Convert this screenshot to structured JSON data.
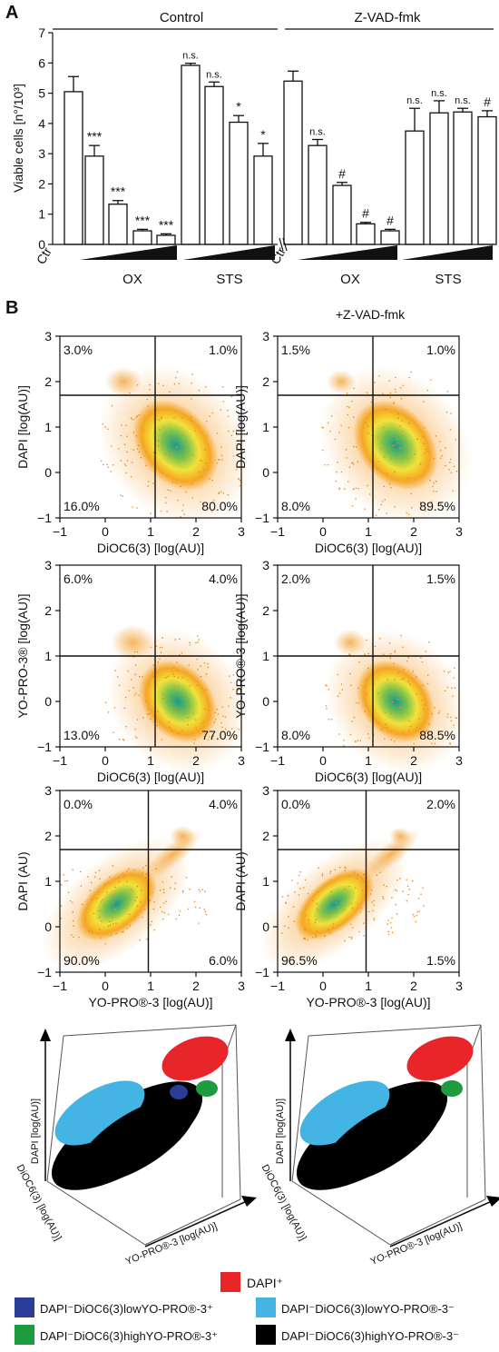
{
  "panel_a": {
    "label": "A",
    "group_control": "Control",
    "group_zvad": "Z-VAD-fmk",
    "ylabel": "Viable cells [n°/10³]",
    "ctr_label": "Ctr",
    "ox_label": "OX",
    "sts_label": "STS"
  },
  "panel_b": {
    "label": "B",
    "zvad_label": "+Z-VAD-fmk",
    "plots": [
      {
        "ylabel": "DAPI [log(AU)]",
        "xlabel": "DiOC6(3) [log(AU)]",
        "q": [
          "3.0%",
          "1.0%",
          "16.0%",
          "80.0%"
        ]
      },
      {
        "ylabel": "DAPI [log(AU)]",
        "xlabel": "DiOC6(3) [log(AU)]",
        "q": [
          "1.5%",
          "1.0%",
          "8.0%",
          "89.5%"
        ]
      },
      {
        "ylabel": "YO-PRO-3® [log(AU)]",
        "xlabel": "DiOC6(3) [log(AU)]",
        "q": [
          "6.0%",
          "4.0%",
          "13.0%",
          "77.0%"
        ]
      },
      {
        "ylabel": "YO-PRO®-3 [log(AU)]",
        "xlabel": "DiOC6(3) [log(AU)]",
        "q": [
          "2.0%",
          "1.5%",
          "8.0%",
          "88.5%"
        ]
      },
      {
        "ylabel": "DAPI (AU)",
        "xlabel": "YO-PRO®-3 [log(AU)]",
        "q": [
          "0.0%",
          "4.0%",
          "90.0%",
          "6.0%"
        ]
      },
      {
        "ylabel": "DAPI (AU)",
        "xlabel": "YO-PRO®-3 [log(AU)]",
        "q": [
          "0.0%",
          "2.0%",
          "96.5%",
          "1.5%"
        ]
      }
    ],
    "axis3d": {
      "z": "DAPI [log(AU)]",
      "y": "DiOC6(3) [log(AU)]",
      "x": "YO-PRO®-3 [log(AU)]"
    },
    "legend": [
      {
        "label": "DAPI⁺",
        "color": "#e8262a"
      },
      {
        "label": "DAPI⁻DiOC6(3)lowYO-PRO®-3⁺",
        "color": "#2b3d97"
      },
      {
        "label": "DAPI⁻DiOC6(3)lowYO-PRO®-3⁻",
        "color": "#43b4e3"
      },
      {
        "label": "DAPI⁻DiOC6(3)highYO-PRO®-3⁺",
        "color": "#1e9a3f"
      },
      {
        "label": "DAPI⁻DiOC6(3)highYO-PRO®-3⁻",
        "color": "#000000"
      }
    ]
  },
  "chart_data": [
    {
      "type": "bar",
      "title": "Control",
      "ylabel": "Viable cells [n°/10³]",
      "ylim": [
        0,
        7
      ],
      "yticks": [
        0,
        1,
        2,
        3,
        4,
        5,
        6,
        7
      ],
      "categories": [
        "Ctr",
        "OX",
        "OX",
        "OX",
        "OX",
        "STS",
        "STS",
        "STS",
        "STS"
      ],
      "values": [
        5.05,
        2.92,
        1.33,
        0.45,
        0.3,
        5.92,
        5.22,
        4.04,
        2.92
      ],
      "errors": [
        0.5,
        0.35,
        0.12,
        0.05,
        0.05,
        0.07,
        0.15,
        0.22,
        0.42
      ],
      "annotations": [
        "",
        "***",
        "***",
        "***",
        "***",
        "n.s.",
        "n.s.",
        "*",
        "*"
      ]
    },
    {
      "type": "bar",
      "title": "Z-VAD-fmk",
      "ylim": [
        0,
        7
      ],
      "categories": [
        "Ctr",
        "OX",
        "OX",
        "OX",
        "OX",
        "STS",
        "STS",
        "STS",
        "STS"
      ],
      "values": [
        5.4,
        3.27,
        1.95,
        0.68,
        0.45,
        3.75,
        4.35,
        4.38,
        4.22
      ],
      "errors": [
        0.33,
        0.2,
        0.1,
        0.05,
        0.05,
        0.75,
        0.4,
        0.12,
        0.2
      ],
      "annotations": [
        "",
        "n.s.",
        "#",
        "#",
        "#",
        "n.s.",
        "n.s.",
        "n.s.",
        "#"
      ]
    },
    {
      "type": "scatter",
      "xlim": [
        -1,
        3
      ],
      "ylim": [
        -1,
        3
      ],
      "ticks": [
        -1,
        0,
        1,
        2,
        3
      ]
    }
  ]
}
